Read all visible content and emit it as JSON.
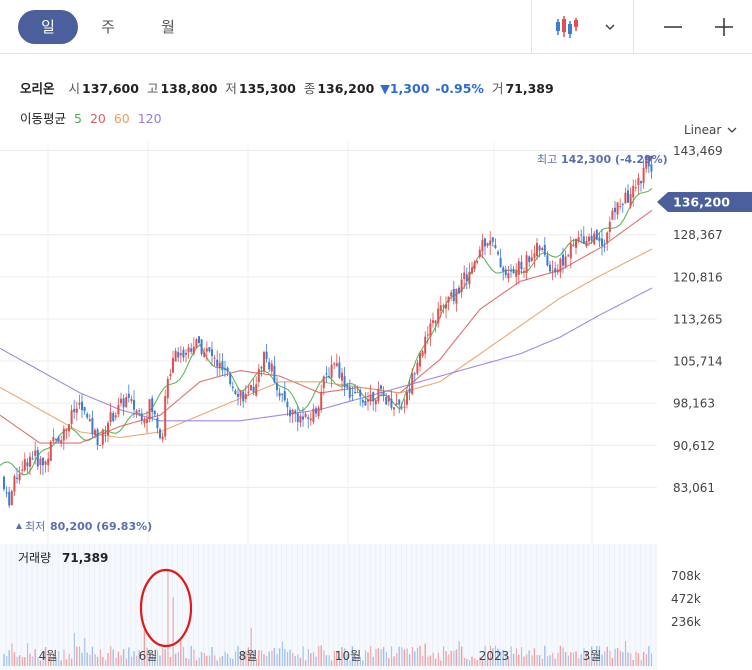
{
  "tabs": [
    {
      "id": "tab-day",
      "label": "일",
      "active": true
    },
    {
      "id": "tab-week",
      "label": "주",
      "active": false
    },
    {
      "id": "tab-month",
      "label": "월",
      "active": false
    }
  ],
  "toolbar": {
    "chart_type_icon": "candlestick-icon",
    "dropdown_icon": "chevron-down-icon",
    "zoom_out_icon": "minus-icon",
    "zoom_in_icon": "plus-icon"
  },
  "quote": {
    "name": "오리온",
    "open_label": "시",
    "open": "137,600",
    "high_label": "고",
    "high": "138,800",
    "low_label": "저",
    "low": "135,300",
    "close_label": "종",
    "close": "136,200",
    "change": "▼1,300",
    "change_pct": "-0.95%",
    "volume_label": "거",
    "volume": "71,389"
  },
  "ma_legend": {
    "label": "이동평균",
    "items": [
      {
        "period": "5",
        "color": "#4caf50"
      },
      {
        "period": "20",
        "color": "#e06060"
      },
      {
        "period": "60",
        "color": "#e8a060"
      },
      {
        "period": "120",
        "color": "#9a7ae0"
      }
    ]
  },
  "scale_mode": "Linear",
  "colors": {
    "up": "#e05050",
    "down": "#3d7bd9",
    "accent": "#4a5f9b",
    "annotation": "#5a6fb0"
  },
  "chart_data": {
    "type": "candlestick",
    "price_axis": {
      "min": 79000,
      "max": 145000,
      "ticks": [
        "143,469",
        "136,200",
        "128,367",
        "120,816",
        "113,265",
        "105,714",
        "98,163",
        "90,612",
        "83,061"
      ]
    },
    "current_price": "136,200",
    "high_annotation": {
      "label": "최고",
      "value": "142,300 (-4.29%)"
    },
    "low_annotation": {
      "label": "최저",
      "value": "80,200 (69.83%)"
    },
    "volume_label": "거래량",
    "volume_value": "71,389",
    "volume_axis": {
      "max": 800000,
      "ticks": [
        "708k",
        "472k",
        "236k"
      ]
    },
    "x_labels": [
      "4월",
      "6월",
      "8월",
      "10월",
      "2023",
      "3월"
    ],
    "price_path": [
      [
        0,
        85000
      ],
      [
        8,
        80200
      ],
      [
        18,
        86000
      ],
      [
        32,
        89000
      ],
      [
        44,
        87000
      ],
      [
        52,
        91000
      ],
      [
        64,
        93000
      ],
      [
        72,
        96000
      ],
      [
        80,
        98000
      ],
      [
        90,
        94000
      ],
      [
        100,
        91000
      ],
      [
        108,
        95000
      ],
      [
        118,
        97000
      ],
      [
        126,
        99000
      ],
      [
        136,
        97000
      ],
      [
        146,
        96000
      ],
      [
        150,
        98000
      ],
      [
        162,
        92000
      ],
      [
        166,
        100000
      ],
      [
        174,
        108000
      ],
      [
        184,
        107000
      ],
      [
        194,
        109000
      ],
      [
        204,
        108000
      ],
      [
        214,
        106000
      ],
      [
        222,
        104000
      ],
      [
        230,
        102000
      ],
      [
        240,
        100000
      ],
      [
        248,
        99000
      ],
      [
        258,
        103000
      ],
      [
        264,
        107000
      ],
      [
        272,
        104000
      ],
      [
        280,
        100000
      ],
      [
        288,
        97000
      ],
      [
        296,
        96000
      ],
      [
        306,
        95000
      ],
      [
        316,
        97000
      ],
      [
        324,
        102000
      ],
      [
        334,
        106000
      ],
      [
        342,
        103000
      ],
      [
        350,
        100000
      ],
      [
        358,
        99000
      ],
      [
        366,
        99000
      ],
      [
        376,
        100000
      ],
      [
        386,
        99000
      ],
      [
        396,
        98000
      ],
      [
        404,
        98000
      ],
      [
        410,
        101000
      ],
      [
        418,
        107000
      ],
      [
        428,
        110000
      ],
      [
        436,
        114000
      ],
      [
        446,
        116000
      ],
      [
        456,
        118000
      ],
      [
        466,
        121000
      ],
      [
        474,
        122000
      ],
      [
        482,
        127000
      ],
      [
        490,
        128000
      ],
      [
        498,
        124000
      ],
      [
        508,
        121000
      ],
      [
        516,
        122000
      ],
      [
        524,
        123000
      ],
      [
        532,
        125000
      ],
      [
        540,
        126000
      ],
      [
        548,
        123000
      ],
      [
        556,
        122000
      ],
      [
        564,
        124000
      ],
      [
        572,
        126000
      ],
      [
        580,
        128000
      ],
      [
        588,
        128000
      ],
      [
        596,
        128000
      ],
      [
        604,
        127000
      ],
      [
        612,
        132000
      ],
      [
        620,
        134000
      ],
      [
        628,
        135000
      ],
      [
        636,
        137000
      ],
      [
        642,
        139000
      ],
      [
        648,
        142000
      ],
      [
        654,
        136200
      ]
    ],
    "ma_paths": {
      "5": [
        [
          0,
          87000
        ],
        [
          30,
          86000
        ],
        [
          60,
          93000
        ],
        [
          100,
          92000
        ],
        [
          140,
          96000
        ],
        [
          170,
          101000
        ],
        [
          200,
          108000
        ],
        [
          240,
          101000
        ],
        [
          270,
          104000
        ],
        [
          300,
          97000
        ],
        [
          330,
          103000
        ],
        [
          360,
          100000
        ],
        [
          400,
          98000
        ],
        [
          430,
          111000
        ],
        [
          480,
          124000
        ],
        [
          510,
          121000
        ],
        [
          540,
          124000
        ],
        [
          580,
          127000
        ],
        [
          610,
          129000
        ],
        [
          654,
          138000
        ]
      ],
      "20": [
        [
          0,
          96000
        ],
        [
          40,
          91000
        ],
        [
          80,
          91000
        ],
        [
          120,
          94000
        ],
        [
          160,
          96000
        ],
        [
          200,
          102000
        ],
        [
          240,
          104000
        ],
        [
          280,
          103000
        ],
        [
          320,
          100000
        ],
        [
          360,
          101000
        ],
        [
          400,
          100000
        ],
        [
          440,
          106000
        ],
        [
          480,
          115000
        ],
        [
          520,
          120000
        ],
        [
          560,
          122000
        ],
        [
          600,
          126000
        ],
        [
          654,
          133000
        ]
      ],
      "60": [
        [
          0,
          101000
        ],
        [
          40,
          97000
        ],
        [
          80,
          93000
        ],
        [
          120,
          92000
        ],
        [
          160,
          93000
        ],
        [
          200,
          96000
        ],
        [
          240,
          99000
        ],
        [
          280,
          102000
        ],
        [
          320,
          102000
        ],
        [
          360,
          101000
        ],
        [
          400,
          100000
        ],
        [
          440,
          102000
        ],
        [
          480,
          107000
        ],
        [
          520,
          112000
        ],
        [
          560,
          117000
        ],
        [
          600,
          121000
        ],
        [
          654,
          126000
        ]
      ],
      "120": [
        [
          0,
          108000
        ],
        [
          40,
          104000
        ],
        [
          80,
          100000
        ],
        [
          120,
          97000
        ],
        [
          160,
          95000
        ],
        [
          200,
          95000
        ],
        [
          240,
          95000
        ],
        [
          280,
          96000
        ],
        [
          320,
          97000
        ],
        [
          360,
          99000
        ],
        [
          400,
          101000
        ],
        [
          440,
          103000
        ],
        [
          480,
          105000
        ],
        [
          520,
          107000
        ],
        [
          560,
          110000
        ],
        [
          600,
          114000
        ],
        [
          654,
          119000
        ]
      ]
    },
    "volume_spike": {
      "value": 708000
    }
  }
}
